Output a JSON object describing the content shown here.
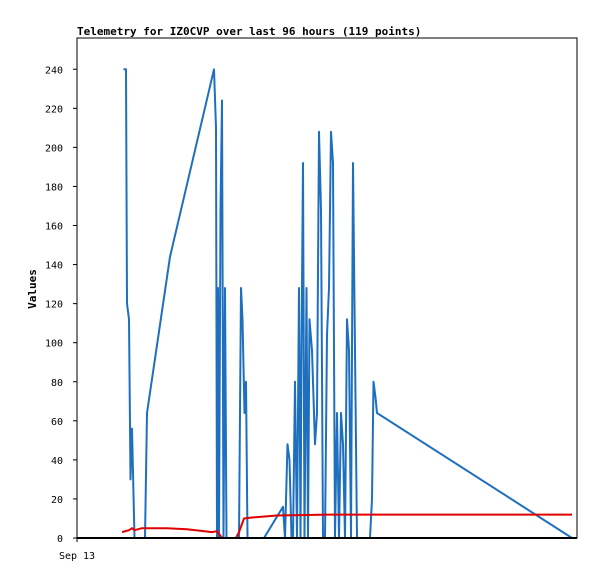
{
  "chart_data": {
    "type": "line",
    "title": "Telemetry for IZ0CVP over last 96 hours (119 points)",
    "xlabel": "",
    "ylabel": "Values",
    "ylim": [
      0,
      256
    ],
    "yticks": [
      0,
      20,
      40,
      60,
      80,
      100,
      120,
      140,
      160,
      180,
      200,
      220,
      240
    ],
    "xlim": [
      0,
      100
    ],
    "xtick_labels": [
      {
        "label": "Sep 13",
        "x": 0
      }
    ],
    "grid": false,
    "legend": "none",
    "series": [
      {
        "color": "#1f6fbf",
        "points": [
          [
            9.3,
            240
          ],
          [
            9.8,
            240
          ],
          [
            10.0,
            120
          ],
          [
            10.4,
            112
          ],
          [
            10.7,
            30
          ],
          [
            11.0,
            56
          ],
          [
            11.5,
            0
          ],
          [
            13.6,
            0
          ],
          [
            14.0,
            64
          ],
          [
            18.6,
            144
          ],
          [
            27.4,
            240
          ],
          [
            27.8,
            210
          ],
          [
            28.0,
            0
          ],
          [
            28.2,
            128
          ],
          [
            28.4,
            0
          ],
          [
            28.7,
            168
          ],
          [
            29.0,
            224
          ],
          [
            29.3,
            0
          ],
          [
            29.6,
            128
          ],
          [
            29.9,
            0
          ],
          [
            30.6,
            0
          ],
          [
            31.2,
            0
          ],
          [
            32.4,
            0
          ],
          [
            32.8,
            128
          ],
          [
            33.1,
            112
          ],
          [
            33.5,
            64
          ],
          [
            33.8,
            80
          ],
          [
            34.1,
            0
          ],
          [
            34.5,
            0
          ],
          [
            37.4,
            0
          ],
          [
            41.2,
            16
          ],
          [
            41.6,
            0
          ],
          [
            42.1,
            48
          ],
          [
            42.5,
            40
          ],
          [
            42.9,
            0
          ],
          [
            43.2,
            0
          ],
          [
            43.6,
            80
          ],
          [
            44.0,
            0
          ],
          [
            44.4,
            128
          ],
          [
            44.7,
            0
          ],
          [
            44.9,
            96
          ],
          [
            45.2,
            192
          ],
          [
            45.5,
            0
          ],
          [
            45.9,
            128
          ],
          [
            46.2,
            0
          ],
          [
            46.5,
            112
          ],
          [
            47.0,
            96
          ],
          [
            47.6,
            48
          ],
          [
            48.0,
            64
          ],
          [
            48.4,
            208
          ],
          [
            48.8,
            168
          ],
          [
            49.2,
            0
          ],
          [
            49.6,
            0
          ],
          [
            50.0,
            104
          ],
          [
            50.4,
            128
          ],
          [
            50.8,
            208
          ],
          [
            51.2,
            192
          ],
          [
            51.6,
            0
          ],
          [
            52.0,
            64
          ],
          [
            52.4,
            0
          ],
          [
            52.8,
            64
          ],
          [
            53.2,
            48
          ],
          [
            53.6,
            0
          ],
          [
            54.0,
            112
          ],
          [
            54.4,
            96
          ],
          [
            54.8,
            0
          ],
          [
            55.2,
            192
          ],
          [
            55.6,
            96
          ],
          [
            56.0,
            0
          ],
          [
            56.4,
            0
          ],
          [
            58.6,
            0
          ],
          [
            59.0,
            20
          ],
          [
            59.3,
            80
          ],
          [
            59.7,
            72
          ],
          [
            60.0,
            64
          ],
          [
            99.0,
            0
          ]
        ]
      },
      {
        "color": "#e00000",
        "points": [
          [
            9.0,
            3
          ],
          [
            10.4,
            4
          ],
          [
            11.0,
            5
          ],
          [
            11.5,
            4
          ],
          [
            13.0,
            5
          ],
          [
            18.0,
            5
          ],
          [
            22.0,
            4.5
          ],
          [
            27.0,
            3
          ],
          [
            28.0,
            3.5
          ],
          [
            29.0,
            0
          ],
          [
            31.8,
            0
          ],
          [
            32.4,
            3
          ],
          [
            33.4,
            10
          ],
          [
            35.0,
            10.5
          ],
          [
            40.0,
            11.5
          ],
          [
            50.0,
            12
          ],
          [
            70.0,
            12
          ],
          [
            99.0,
            12
          ]
        ]
      }
    ]
  }
}
